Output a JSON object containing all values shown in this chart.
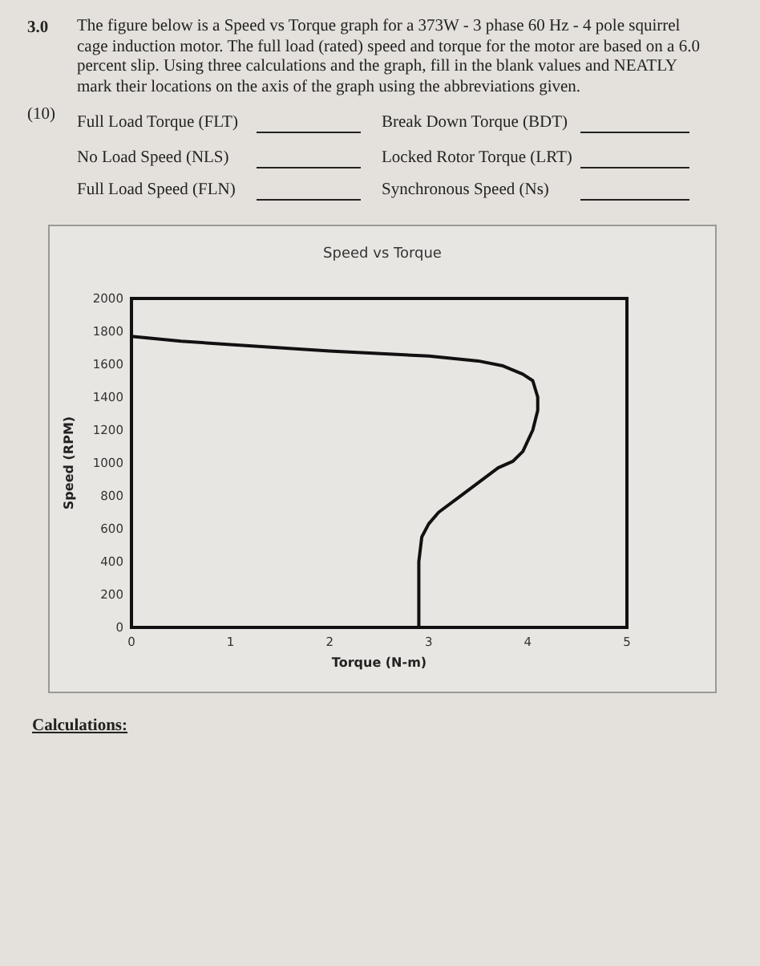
{
  "chart_data": {
    "type": "line",
    "title": "Speed vs Torque",
    "xlabel": "Torque (N-m)",
    "ylabel": "Speed (RPM)",
    "annotations": [
      "3.0",
      "The figure below is a Speed vs Torque graph for a 373W - 3 phase 60 Hz - 4 pole squirrel cage induction motor. The full load (rated) speed and torque for the motor are based on a 6.0 percent slip. Using three calculations and the graph, fill in the blank values and NEATLY mark their locations on the axis of the graph using the abbreviations given.",
      "(10)",
      "Full Load Torque (FLT)",
      "Break Down Torque (BDT)",
      "No Load Speed (NLS)",
      "Locked Rotor Torque (LRT)",
      "Full Load Speed (FLN)",
      "Synchronous Speed (Ns)",
      "Calculations:"
    ],
    "series": [
      {
        "color": "#111111",
        "x": [
          0,
          0.5,
          1,
          2,
          3,
          3.5,
          3.75,
          3.95,
          4.05,
          4.1,
          4.1,
          4.05,
          3.95,
          3.85,
          3.7,
          3.5,
          3.3,
          3.1,
          3.0,
          2.93,
          2.9,
          2.9,
          2.9
        ],
        "values": [
          1770,
          1740,
          1720,
          1680,
          1650,
          1620,
          1590,
          1540,
          1500,
          1400,
          1320,
          1200,
          1070,
          1010,
          970,
          880,
          790,
          700,
          630,
          550,
          400,
          200,
          0
        ]
      }
    ],
    "xlim": [
      0,
      5
    ],
    "xticks": [
      0,
      1,
      2,
      3,
      4,
      5
    ],
    "ylim": [
      0,
      2000
    ],
    "yticks": [
      0,
      200,
      400,
      600,
      800,
      1000,
      1200,
      1400,
      1600,
      1800,
      2000
    ],
    "grid": false,
    "marker": "none",
    "line_style": "solid"
  }
}
